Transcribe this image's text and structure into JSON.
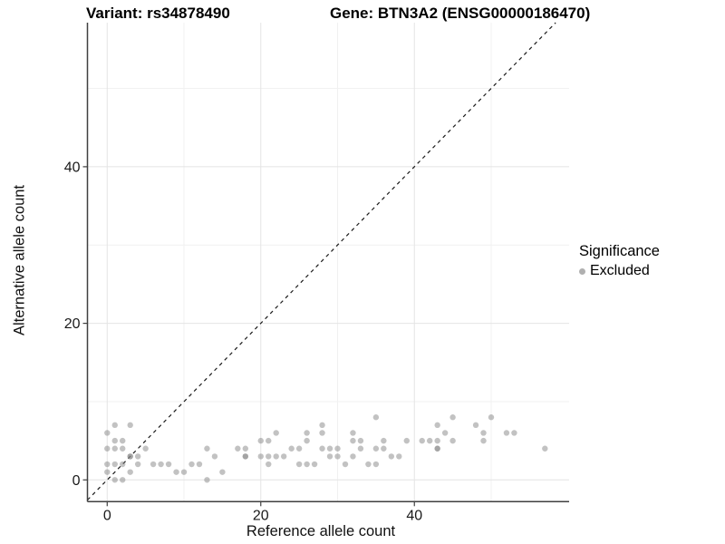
{
  "chart_data": {
    "type": "scatter",
    "title_left": "Variant: rs34878490",
    "title_right": "Gene: BTN3A2 (ENSG00000186470)",
    "xlabel": "Reference allele count",
    "ylabel": "Alternative allele count",
    "xlim": [
      -2.57,
      60.15
    ],
    "ylim": [
      -2.78,
      58.4
    ],
    "x_major_ticks": [
      0,
      20,
      40
    ],
    "x_minor_ticks": [
      10,
      30,
      50
    ],
    "y_major_ticks": [
      0,
      20,
      40
    ],
    "y_minor_ticks": [
      10,
      30,
      50
    ],
    "grid": true,
    "colors": {
      "point": "#858585",
      "point_opacity": 0.5,
      "major_grid": "#e4e4e4",
      "minor_grid": "#f1f1f1",
      "axis": "#404040",
      "tick_text": "#1a1a1a",
      "identity_line": "#1a1a1a"
    },
    "identity_line": {
      "slope": 1,
      "intercept": 0,
      "style": "dashed"
    },
    "legend": {
      "title": "Significance",
      "position": "right",
      "items": [
        {
          "label": "Excluded",
          "color": "#b0b0b0"
        }
      ]
    },
    "series": [
      {
        "name": "Excluded",
        "points": [
          [
            0,
            1
          ],
          [
            0,
            2
          ],
          [
            0,
            4
          ],
          [
            0,
            6
          ],
          [
            1,
            0
          ],
          [
            1,
            2
          ],
          [
            1,
            4
          ],
          [
            1,
            5
          ],
          [
            1,
            7
          ],
          [
            2,
            0
          ],
          [
            2,
            2
          ],
          [
            2,
            4
          ],
          [
            2,
            5
          ],
          [
            3,
            1
          ],
          [
            3,
            3
          ],
          [
            3,
            3
          ],
          [
            3,
            7
          ],
          [
            4,
            2
          ],
          [
            4,
            3
          ],
          [
            5,
            4
          ],
          [
            6,
            2
          ],
          [
            7,
            2
          ],
          [
            8,
            2
          ],
          [
            9,
            1
          ],
          [
            10,
            1
          ],
          [
            11,
            2
          ],
          [
            12,
            2
          ],
          [
            13,
            0
          ],
          [
            13,
            4
          ],
          [
            14,
            3
          ],
          [
            15,
            1
          ],
          [
            17,
            4
          ],
          [
            18,
            3
          ],
          [
            18,
            3
          ],
          [
            18,
            4
          ],
          [
            20,
            3
          ],
          [
            20,
            5
          ],
          [
            21,
            2
          ],
          [
            21,
            3
          ],
          [
            21,
            5
          ],
          [
            22,
            3
          ],
          [
            22,
            6
          ],
          [
            23,
            3
          ],
          [
            24,
            4
          ],
          [
            25,
            2
          ],
          [
            25,
            4
          ],
          [
            26,
            2
          ],
          [
            26,
            5
          ],
          [
            26,
            6
          ],
          [
            27,
            2
          ],
          [
            28,
            4
          ],
          [
            28,
            6
          ],
          [
            28,
            7
          ],
          [
            29,
            3
          ],
          [
            29,
            4
          ],
          [
            30,
            3
          ],
          [
            30,
            4
          ],
          [
            31,
            2
          ],
          [
            32,
            3
          ],
          [
            32,
            5
          ],
          [
            32,
            6
          ],
          [
            33,
            4
          ],
          [
            33,
            5
          ],
          [
            34,
            2
          ],
          [
            35,
            2
          ],
          [
            35,
            4
          ],
          [
            35,
            8
          ],
          [
            36,
            4
          ],
          [
            36,
            5
          ],
          [
            37,
            3
          ],
          [
            38,
            3
          ],
          [
            39,
            5
          ],
          [
            41,
            5
          ],
          [
            42,
            5
          ],
          [
            43,
            4
          ],
          [
            43,
            4
          ],
          [
            43,
            5
          ],
          [
            43,
            7
          ],
          [
            44,
            6
          ],
          [
            45,
            5
          ],
          [
            45,
            8
          ],
          [
            48,
            7
          ],
          [
            49,
            5
          ],
          [
            49,
            6
          ],
          [
            50,
            8
          ],
          [
            52,
            6
          ],
          [
            53,
            6
          ],
          [
            57,
            4
          ]
        ]
      }
    ]
  }
}
